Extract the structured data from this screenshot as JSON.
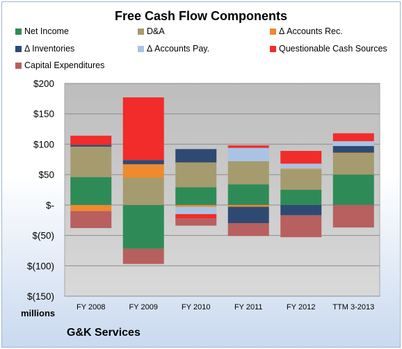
{
  "chart_data": {
    "type": "bar",
    "stacked": true,
    "title": "Free Cash Flow Components",
    "categories": [
      "FY 2008",
      "FY 2009",
      "FY 2010",
      "FY 2011",
      "FY 2012",
      "TTM 3-2013"
    ],
    "ylim": [
      -150,
      200
    ],
    "yticks": [
      200,
      150,
      100,
      50,
      0,
      -50,
      -100,
      -150
    ],
    "ytick_labels": [
      "$200",
      "$150",
      "$100",
      "$50",
      "$-",
      "$(50)",
      "$(100)",
      "$(150)"
    ],
    "units_label": "millions",
    "grid": true,
    "legend_position": "top",
    "series": [
      {
        "name": "Net Income",
        "color": "#2e8b57",
        "values": [
          46,
          -72,
          29,
          34,
          25,
          50
        ]
      },
      {
        "name": "D&A",
        "color": "#a59b6e",
        "values": [
          50,
          45,
          41,
          38,
          34,
          35
        ]
      },
      {
        "name": "Δ Accounts Rec.",
        "color": "#ef8a2e",
        "values": [
          -10,
          22,
          -3,
          -3,
          1,
          1
        ]
      },
      {
        "name": "Δ Inventories",
        "color": "#2e4a73",
        "values": [
          3,
          7,
          22,
          -27,
          -17,
          11
        ]
      },
      {
        "name": "Δ Accounts Pay.",
        "color": "#a9c3e4",
        "values": [
          0,
          0,
          -12,
          22,
          8,
          8
        ]
      },
      {
        "name": "Questionable Cash Sources",
        "color": "#f22b2b",
        "values": [
          15,
          103,
          -7,
          4,
          21,
          13
        ]
      },
      {
        "name": "Capital Expenditures",
        "color": "#b85f5f",
        "values": [
          -28,
          -25,
          -12,
          -21,
          -36,
          -37
        ]
      }
    ]
  },
  "footer": "G&K Services"
}
